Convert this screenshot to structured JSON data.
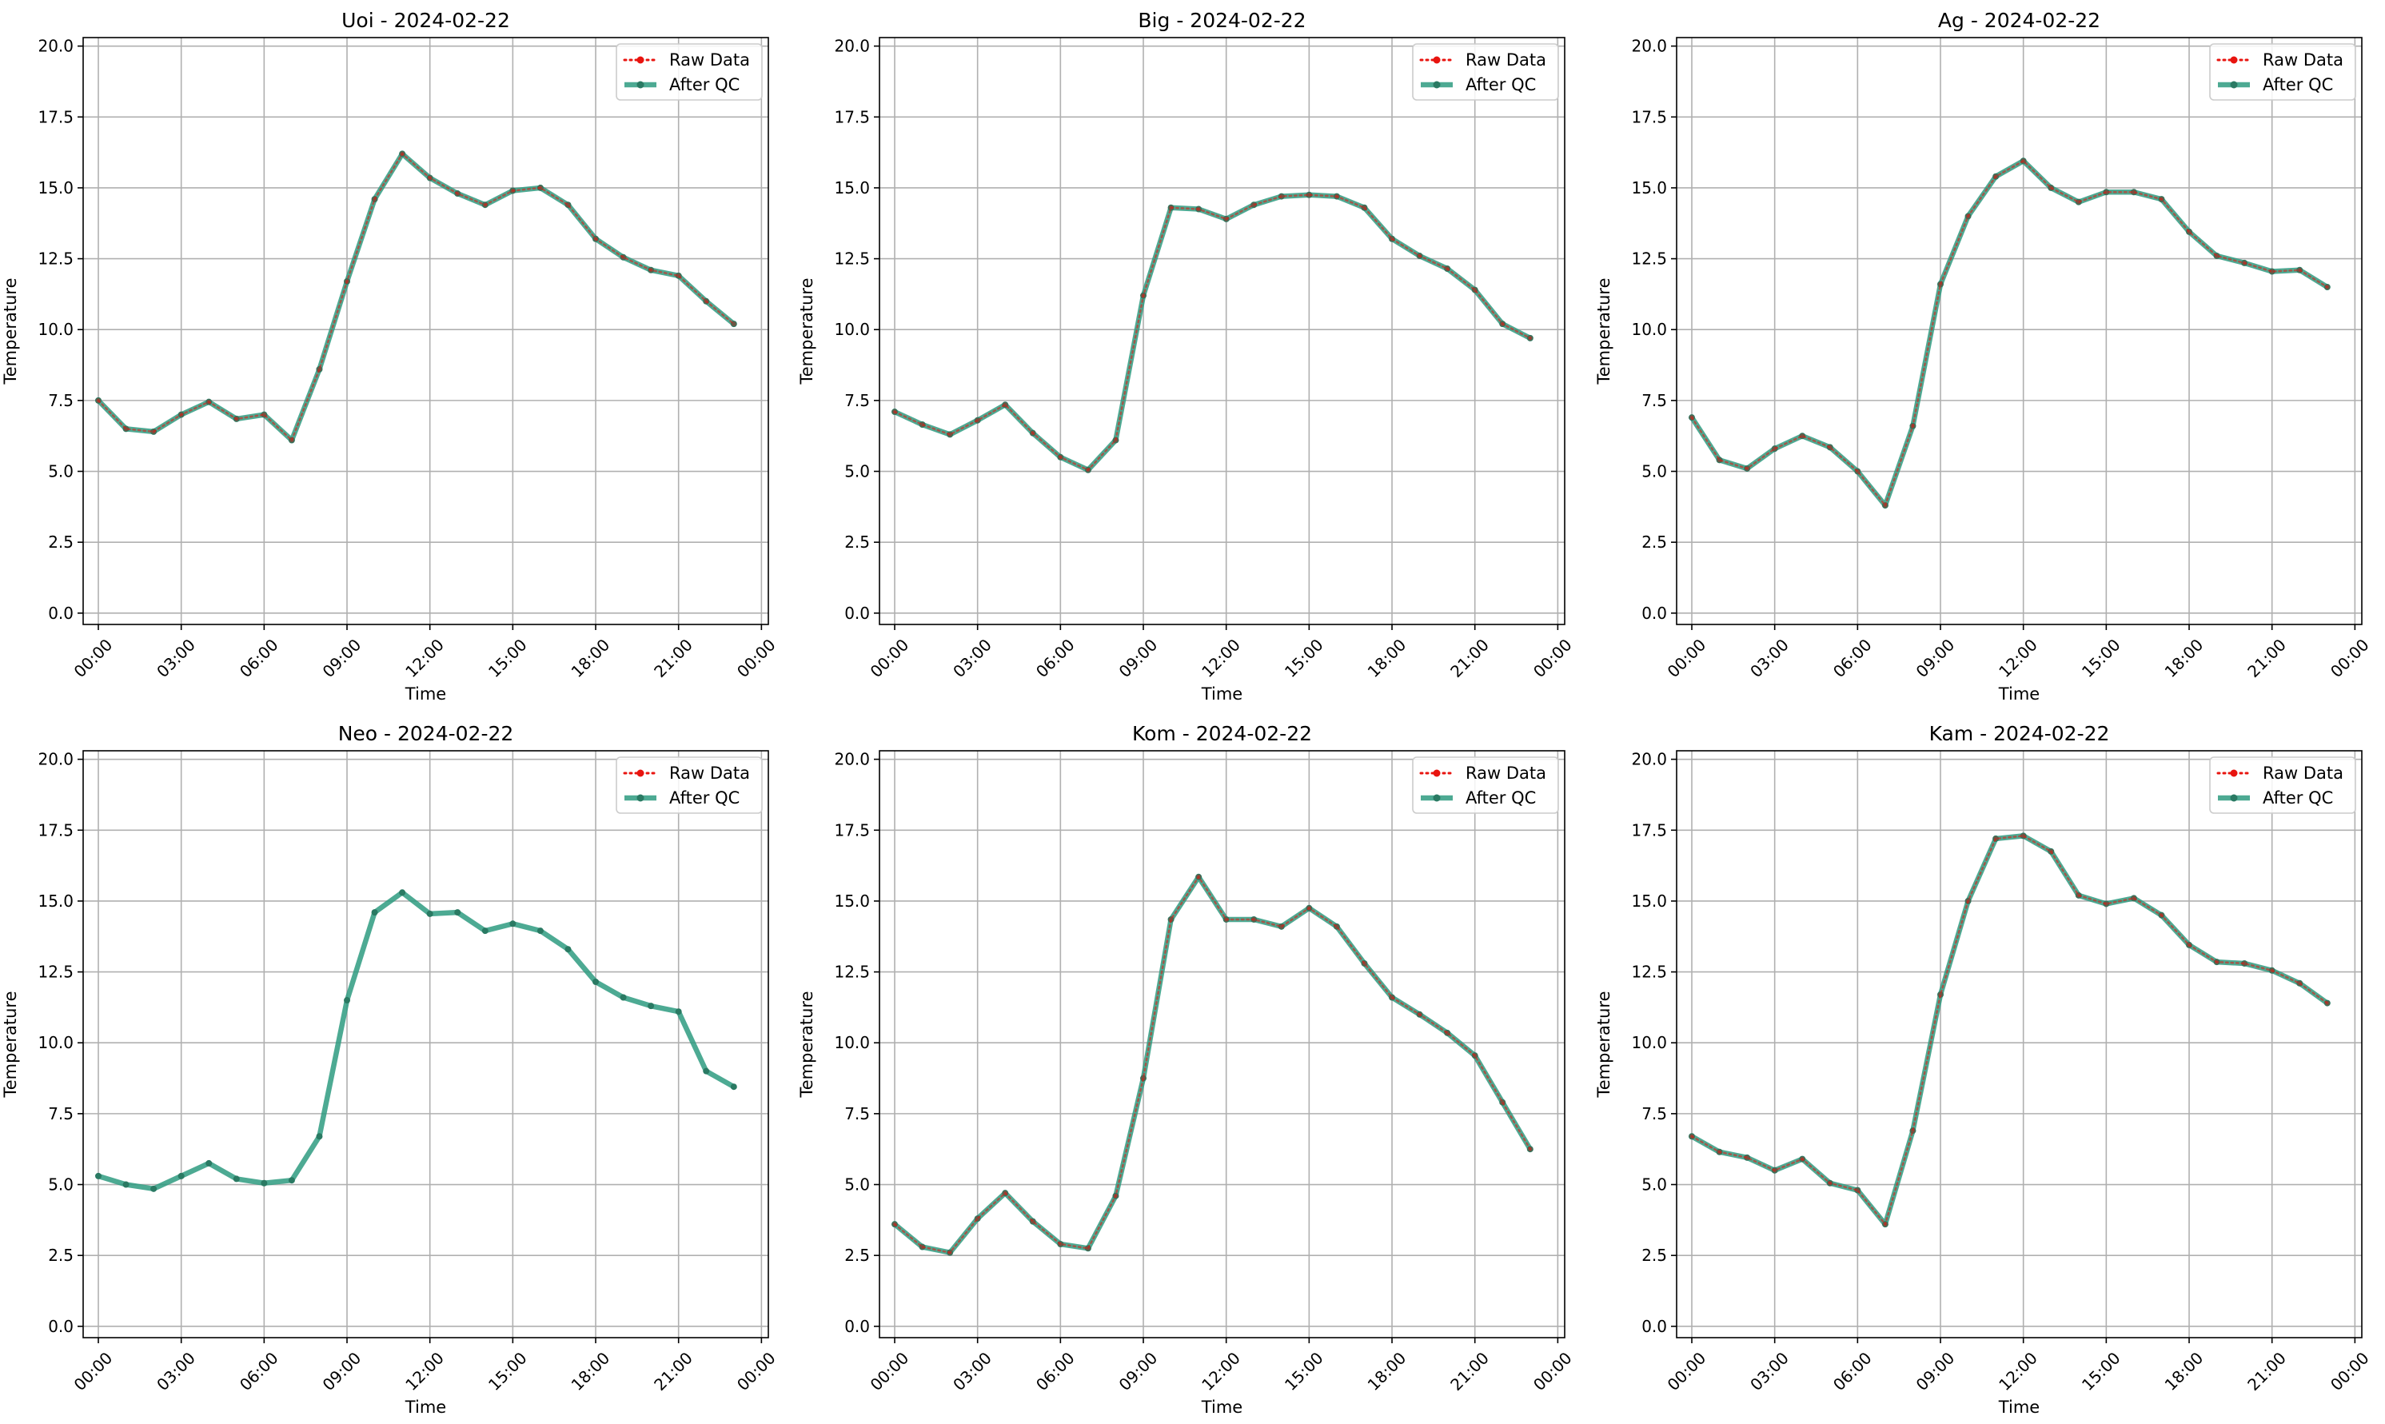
{
  "colors": {
    "raw": "#e8140f",
    "qc": "#2e9b80",
    "qc_marker": "#2a7a63",
    "grid": "#b0b0b0",
    "axis": "#000000",
    "legend_border": "#cccccc"
  },
  "legend": {
    "placement": "upper-right",
    "items": [
      "Raw Data",
      "After QC"
    ]
  },
  "chart_data": [
    {
      "type": "line",
      "title": "Uoi - 2024-02-22",
      "xlabel": "Time",
      "ylabel": "Temperature",
      "ylim": [
        -0.4,
        20.3
      ],
      "yticks": [
        "0.0",
        "2.5",
        "5.0",
        "7.5",
        "10.0",
        "12.5",
        "15.0",
        "17.5",
        "20.0"
      ],
      "xticks": [
        "00:00",
        "03:00",
        "06:00",
        "09:00",
        "12:00",
        "15:00",
        "18:00",
        "21:00",
        "00:00"
      ],
      "grid": true,
      "x_hours": [
        0,
        1,
        2,
        3,
        4,
        5,
        6,
        7,
        8,
        9,
        10,
        11,
        12,
        13,
        14,
        15,
        16,
        17,
        18,
        19,
        20,
        21,
        22,
        23
      ],
      "series": [
        {
          "name": "Raw Data",
          "values": [
            7.5,
            6.5,
            6.4,
            7.0,
            7.45,
            6.85,
            7.0,
            6.1,
            8.6,
            11.7,
            14.6,
            16.2,
            15.35,
            14.8,
            14.4,
            14.9,
            15.0,
            14.4,
            13.2,
            12.55,
            12.1,
            11.9,
            11.0,
            10.2
          ]
        },
        {
          "name": "After QC",
          "values": [
            7.5,
            6.5,
            6.4,
            7.0,
            7.45,
            6.85,
            7.0,
            6.1,
            8.6,
            11.7,
            14.6,
            16.2,
            15.35,
            14.8,
            14.4,
            14.9,
            15.0,
            14.4,
            13.2,
            12.55,
            12.1,
            11.9,
            11.0,
            10.2
          ]
        }
      ]
    },
    {
      "type": "line",
      "title": "Big - 2024-02-22",
      "xlabel": "Time",
      "ylabel": "Temperature",
      "ylim": [
        -0.4,
        20.3
      ],
      "yticks": [
        "0.0",
        "2.5",
        "5.0",
        "7.5",
        "10.0",
        "12.5",
        "15.0",
        "17.5",
        "20.0"
      ],
      "xticks": [
        "00:00",
        "03:00",
        "06:00",
        "09:00",
        "12:00",
        "15:00",
        "18:00",
        "21:00",
        "00:00"
      ],
      "grid": true,
      "x_hours": [
        0,
        1,
        2,
        3,
        4,
        5,
        6,
        7,
        8,
        9,
        10,
        11,
        12,
        13,
        14,
        15,
        16,
        17,
        18,
        19,
        20,
        21,
        22,
        23
      ],
      "series": [
        {
          "name": "Raw Data",
          "values": [
            7.1,
            6.65,
            6.3,
            6.8,
            7.35,
            6.35,
            5.5,
            5.05,
            6.1,
            11.2,
            14.3,
            14.25,
            13.9,
            14.4,
            14.7,
            14.75,
            14.7,
            14.3,
            13.2,
            12.6,
            12.15,
            11.4,
            10.2,
            9.7
          ]
        },
        {
          "name": "After QC",
          "values": [
            7.1,
            6.65,
            6.3,
            6.8,
            7.35,
            6.35,
            5.5,
            5.05,
            6.1,
            11.2,
            14.3,
            14.25,
            13.9,
            14.4,
            14.7,
            14.75,
            14.7,
            14.3,
            13.2,
            12.6,
            12.15,
            11.4,
            10.2,
            9.7
          ]
        }
      ]
    },
    {
      "type": "line",
      "title": "Ag - 2024-02-22",
      "xlabel": "Time",
      "ylabel": "Temperature",
      "ylim": [
        -0.4,
        20.3
      ],
      "yticks": [
        "0.0",
        "2.5",
        "5.0",
        "7.5",
        "10.0",
        "12.5",
        "15.0",
        "17.5",
        "20.0"
      ],
      "xticks": [
        "00:00",
        "03:00",
        "06:00",
        "09:00",
        "12:00",
        "15:00",
        "18:00",
        "21:00",
        "00:00"
      ],
      "grid": true,
      "x_hours": [
        0,
        1,
        2,
        3,
        4,
        5,
        6,
        7,
        8,
        9,
        10,
        11,
        12,
        13,
        14,
        15,
        16,
        17,
        18,
        19,
        20,
        21,
        22,
        23
      ],
      "series": [
        {
          "name": "Raw Data",
          "values": [
            6.9,
            5.4,
            5.1,
            5.8,
            6.25,
            5.85,
            5.0,
            3.8,
            6.6,
            11.6,
            14.0,
            15.4,
            15.95,
            15.0,
            14.5,
            14.85,
            14.85,
            14.6,
            13.45,
            12.6,
            12.35,
            12.05,
            12.1,
            11.5
          ]
        },
        {
          "name": "After QC",
          "values": [
            6.9,
            5.4,
            5.1,
            5.8,
            6.25,
            5.85,
            5.0,
            3.8,
            6.6,
            11.6,
            14.0,
            15.4,
            15.95,
            15.0,
            14.5,
            14.85,
            14.85,
            14.6,
            13.45,
            12.6,
            12.35,
            12.05,
            12.1,
            11.5
          ]
        }
      ]
    },
    {
      "type": "line",
      "title": "Neo - 2024-02-22",
      "xlabel": "Time",
      "ylabel": "Temperature",
      "ylim": [
        -0.4,
        20.3
      ],
      "yticks": [
        "0.0",
        "2.5",
        "5.0",
        "7.5",
        "10.0",
        "12.5",
        "15.0",
        "17.5",
        "20.0"
      ],
      "xticks": [
        "00:00",
        "03:00",
        "06:00",
        "09:00",
        "12:00",
        "15:00",
        "18:00",
        "21:00",
        "00:00"
      ],
      "grid": true,
      "x_hours": [
        0,
        1,
        2,
        3,
        4,
        5,
        6,
        7,
        8,
        9,
        10,
        11,
        12,
        13,
        14,
        15,
        16,
        17,
        18,
        19,
        20,
        21,
        22,
        23
      ],
      "series": [
        {
          "name": "After QC",
          "values": [
            5.3,
            5.0,
            4.85,
            5.3,
            5.75,
            5.2,
            5.05,
            5.15,
            6.7,
            11.5,
            14.6,
            15.3,
            14.55,
            14.6,
            13.95,
            14.2,
            13.95,
            13.3,
            12.15,
            11.6,
            11.3,
            11.1,
            9.0,
            8.45
          ]
        }
      ]
    },
    {
      "type": "line",
      "title": "Kom - 2024-02-22",
      "xlabel": "Time",
      "ylabel": "Temperature",
      "ylim": [
        -0.4,
        20.3
      ],
      "yticks": [
        "0.0",
        "2.5",
        "5.0",
        "7.5",
        "10.0",
        "12.5",
        "15.0",
        "17.5",
        "20.0"
      ],
      "xticks": [
        "00:00",
        "03:00",
        "06:00",
        "09:00",
        "12:00",
        "15:00",
        "18:00",
        "21:00",
        "00:00"
      ],
      "grid": true,
      "x_hours": [
        0,
        1,
        2,
        3,
        4,
        5,
        6,
        7,
        8,
        9,
        10,
        11,
        12,
        13,
        14,
        15,
        16,
        17,
        18,
        19,
        20,
        21,
        22,
        23
      ],
      "series": [
        {
          "name": "Raw Data",
          "values": [
            3.6,
            2.8,
            2.6,
            3.8,
            4.7,
            3.7,
            2.9,
            2.75,
            4.6,
            8.75,
            14.35,
            15.85,
            14.35,
            14.35,
            14.1,
            14.75,
            14.1,
            12.8,
            11.6,
            11.0,
            10.35,
            9.55,
            7.9,
            6.25
          ]
        },
        {
          "name": "After QC",
          "values": [
            3.6,
            2.8,
            2.6,
            3.8,
            4.7,
            3.7,
            2.9,
            2.75,
            4.6,
            8.75,
            14.35,
            15.85,
            14.35,
            14.35,
            14.1,
            14.75,
            14.1,
            12.8,
            11.6,
            11.0,
            10.35,
            9.55,
            7.9,
            6.25
          ]
        }
      ]
    },
    {
      "type": "line",
      "title": "Kam - 2024-02-22",
      "xlabel": "Time",
      "ylabel": "Temperature",
      "ylim": [
        -0.4,
        20.3
      ],
      "yticks": [
        "0.0",
        "2.5",
        "5.0",
        "7.5",
        "10.0",
        "12.5",
        "15.0",
        "17.5",
        "20.0"
      ],
      "xticks": [
        "00:00",
        "03:00",
        "06:00",
        "09:00",
        "12:00",
        "15:00",
        "18:00",
        "21:00",
        "00:00"
      ],
      "grid": true,
      "x_hours": [
        0,
        1,
        2,
        3,
        4,
        5,
        6,
        7,
        8,
        9,
        10,
        11,
        12,
        13,
        14,
        15,
        16,
        17,
        18,
        19,
        20,
        21,
        22,
        23
      ],
      "series": [
        {
          "name": "Raw Data",
          "values": [
            6.7,
            6.15,
            5.95,
            5.5,
            5.9,
            5.05,
            4.8,
            3.6,
            6.9,
            11.7,
            15.0,
            17.2,
            17.3,
            16.75,
            15.2,
            14.9,
            15.1,
            14.5,
            13.45,
            12.85,
            12.8,
            12.55,
            12.1,
            11.4
          ]
        },
        {
          "name": "After QC",
          "values": [
            6.7,
            6.15,
            5.95,
            5.5,
            5.9,
            5.05,
            4.8,
            3.6,
            6.9,
            11.7,
            15.0,
            17.2,
            17.3,
            16.75,
            15.2,
            14.9,
            15.1,
            14.5,
            13.45,
            12.85,
            12.8,
            12.55,
            12.1,
            11.4
          ]
        }
      ]
    }
  ]
}
